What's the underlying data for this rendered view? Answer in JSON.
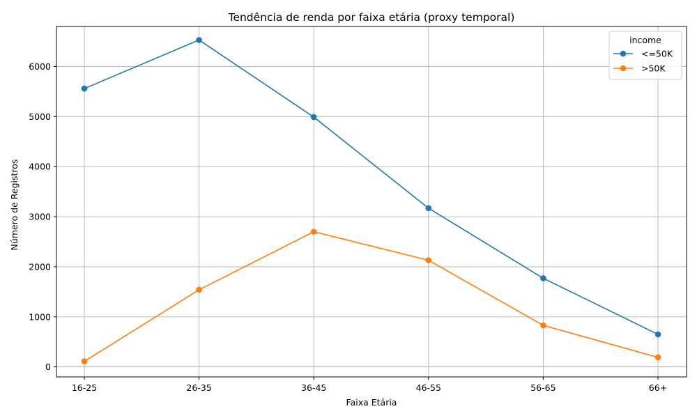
{
  "chart_data": {
    "type": "line",
    "title": "Tendência de renda por faixa etária (proxy temporal)",
    "xlabel": "Faixa Etária",
    "ylabel": "Número de Registros",
    "categories": [
      "16-25",
      "26-35",
      "36-45",
      "46-55",
      "56-65",
      "66+"
    ],
    "ylim": [
      -200,
      6800
    ],
    "yticks": [
      0,
      1000,
      2000,
      3000,
      4000,
      5000,
      6000
    ],
    "grid": true,
    "legend": {
      "title": "income",
      "placement": "top-right"
    },
    "series": [
      {
        "name": " <=50K",
        "color": "#1f77b4",
        "values": [
          5560,
          6530,
          4990,
          3170,
          1770,
          650
        ]
      },
      {
        "name": " >50K",
        "color": "#ff7f0e",
        "values": [
          110,
          1540,
          2700,
          2130,
          830,
          190
        ]
      }
    ]
  }
}
